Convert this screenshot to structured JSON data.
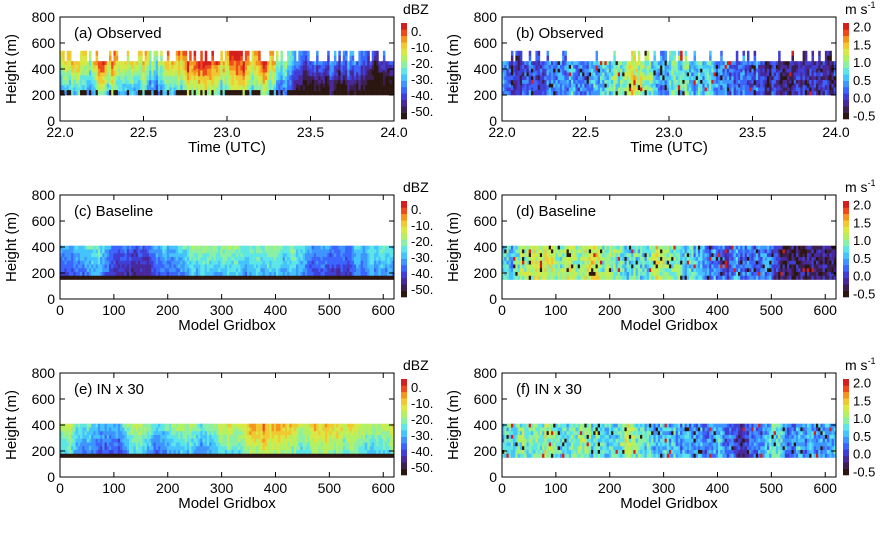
{
  "colors": {
    "scale": [
      "#2b1710",
      "#3d1f4f",
      "#48299c",
      "#3f3fd6",
      "#3c64ff",
      "#3f95ff",
      "#45c3ff",
      "#5ee6e6",
      "#8cf0a4",
      "#b2f064",
      "#d8e844",
      "#f2c832",
      "#f4951f",
      "#ee4a1b",
      "#d51e1e"
    ]
  },
  "chart_data": [
    {
      "id": "a",
      "type": "heatmap",
      "title": "(a) Observed",
      "xlabel": "Time (UTC)",
      "ylabel": "Height (m)",
      "xlim": [
        22.0,
        24.0
      ],
      "ylim": [
        0,
        800
      ],
      "xticks": [
        22.0,
        22.5,
        23.0,
        23.5,
        24.0
      ],
      "xtick_labels": [
        "22.0",
        "22.5",
        "23.0",
        "23.5",
        "24.0"
      ],
      "yticks": [
        0,
        200,
        400,
        600,
        800
      ],
      "ytick_labels": [
        "0",
        "200",
        "400",
        "600",
        "800"
      ],
      "layer_bottom": 200,
      "layer_top": 460,
      "colorbar": {
        "unit": "dBZ",
        "unit_sup": "",
        "range": [
          -55,
          5
        ],
        "ticks": [
          0,
          -10,
          -20,
          -30,
          -40,
          -50
        ],
        "tick_labels": [
          "0.",
          "-10.",
          "-20.",
          "-30.",
          "-40.",
          "-50."
        ]
      },
      "field": "reflectivity",
      "typical_range": [
        -40,
        -15
      ],
      "cap_top": 540,
      "cap_fraction": 0.4
    },
    {
      "id": "b",
      "type": "heatmap",
      "title": "(b) Observed",
      "xlabel": "Time (UTC)",
      "ylabel": "Height (m)",
      "xlim": [
        22.0,
        24.0
      ],
      "ylim": [
        0,
        800
      ],
      "xticks": [
        22.0,
        22.5,
        23.0,
        23.5,
        24.0
      ],
      "xtick_labels": [
        "22.0",
        "22.5",
        "23.0",
        "23.5",
        "24.0"
      ],
      "yticks": [
        0,
        200,
        400,
        600,
        800
      ],
      "ytick_labels": [
        "0",
        "200",
        "400",
        "600",
        "800"
      ],
      "layer_bottom": 200,
      "layer_top": 460,
      "colorbar": {
        "unit": "m s",
        "unit_sup": "-1",
        "range": [
          -0.6,
          2.1
        ],
        "ticks": [
          2.0,
          1.5,
          1.0,
          0.5,
          0.0,
          -0.5
        ],
        "tick_labels": [
          "2.0",
          "1.5",
          "1.0",
          "0.5",
          "0.0",
          "-0.5"
        ]
      },
      "field": "velocity",
      "typical_range": [
        0.2,
        1.0
      ],
      "cap_top": 540,
      "cap_fraction": 0.3
    },
    {
      "id": "c",
      "type": "heatmap",
      "title": "(c) Baseline",
      "xlabel": "Model Gridbox",
      "ylabel": "Height (m)",
      "xlim": [
        0,
        620
      ],
      "ylim": [
        0,
        800
      ],
      "xticks": [
        0,
        100,
        200,
        300,
        400,
        500,
        600
      ],
      "xtick_labels": [
        "0",
        "100",
        "200",
        "300",
        "400",
        "500",
        "600"
      ],
      "yticks": [
        0,
        200,
        400,
        600,
        800
      ],
      "ytick_labels": [
        "0",
        "200",
        "400",
        "600",
        "800"
      ],
      "layer_bottom": 150,
      "layer_top": 410,
      "colorbar": {
        "unit": "dBZ",
        "unit_sup": "",
        "range": [
          -55,
          5
        ],
        "ticks": [
          0,
          -10,
          -20,
          -30,
          -40,
          -50
        ],
        "tick_labels": [
          "0.",
          "-10.",
          "-20.",
          "-30.",
          "-40.",
          "-50."
        ]
      },
      "field": "reflectivity",
      "typical_range": [
        -42,
        -30
      ],
      "cap_top": 410,
      "cap_fraction": 0
    },
    {
      "id": "d",
      "type": "heatmap",
      "title": "(d) Baseline",
      "xlabel": "Model Gridbox",
      "ylabel": "Height (m)",
      "xlim": [
        0,
        620
      ],
      "ylim": [
        0,
        800
      ],
      "xticks": [
        0,
        100,
        200,
        300,
        400,
        500,
        600
      ],
      "xtick_labels": [
        "0",
        "100",
        "200",
        "300",
        "400",
        "500",
        "600"
      ],
      "yticks": [
        0,
        200,
        400,
        600,
        800
      ],
      "ytick_labels": [
        "0",
        "200",
        "400",
        "600",
        "800"
      ],
      "layer_bottom": 150,
      "layer_top": 410,
      "colorbar": {
        "unit": "m s",
        "unit_sup": "-1",
        "range": [
          -0.6,
          2.1
        ],
        "ticks": [
          2.0,
          1.5,
          1.0,
          0.5,
          0.0,
          -0.5
        ],
        "tick_labels": [
          "2.0",
          "1.5",
          "1.0",
          "0.5",
          "0.0",
          "-0.5"
        ]
      },
      "field": "velocity",
      "typical_range": [
        0.2,
        1.0
      ],
      "cap_top": 410,
      "cap_fraction": 0
    },
    {
      "id": "e",
      "type": "heatmap",
      "title": "(e) IN x 30",
      "xlabel": "Model Gridbox",
      "ylabel": "Height (m)",
      "xlim": [
        0,
        620
      ],
      "ylim": [
        0,
        800
      ],
      "xticks": [
        0,
        100,
        200,
        300,
        400,
        500,
        600
      ],
      "xtick_labels": [
        "0",
        "100",
        "200",
        "300",
        "400",
        "500",
        "600"
      ],
      "yticks": [
        0,
        200,
        400,
        600,
        800
      ],
      "ytick_labels": [
        "0",
        "200",
        "400",
        "600",
        "800"
      ],
      "layer_bottom": 150,
      "layer_top": 410,
      "colorbar": {
        "unit": "dBZ",
        "unit_sup": "",
        "range": [
          -55,
          5
        ],
        "ticks": [
          0,
          -10,
          -20,
          -30,
          -40,
          -50
        ],
        "tick_labels": [
          "0.",
          "-10.",
          "-20.",
          "-30.",
          "-40.",
          "-50."
        ]
      },
      "field": "reflectivity",
      "typical_range": [
        -30,
        -15
      ],
      "cap_top": 410,
      "cap_fraction": 0
    },
    {
      "id": "f",
      "type": "heatmap",
      "title": "(f) IN x 30",
      "xlabel": "Model Gridbox",
      "ylabel": "Height (m)",
      "xlim": [
        0,
        620
      ],
      "ylim": [
        0,
        800
      ],
      "xticks": [
        0,
        100,
        200,
        300,
        400,
        500,
        600
      ],
      "xtick_labels": [
        "0",
        "100",
        "200",
        "300",
        "400",
        "500",
        "600"
      ],
      "yticks": [
        0,
        200,
        400,
        600,
        800
      ],
      "ytick_labels": [
        "0",
        "200",
        "400",
        "600",
        "800"
      ],
      "layer_bottom": 150,
      "layer_top": 410,
      "colorbar": {
        "unit": "m s",
        "unit_sup": "-1",
        "range": [
          -0.6,
          2.1
        ],
        "ticks": [
          2.0,
          1.5,
          1.0,
          0.5,
          0.0,
          -0.5
        ],
        "tick_labels": [
          "2.0",
          "1.5",
          "1.0",
          "0.5",
          "0.0",
          "-0.5"
        ]
      },
      "field": "velocity",
      "typical_range": [
        0.1,
        0.9
      ],
      "cap_top": 410,
      "cap_fraction": 0
    }
  ]
}
